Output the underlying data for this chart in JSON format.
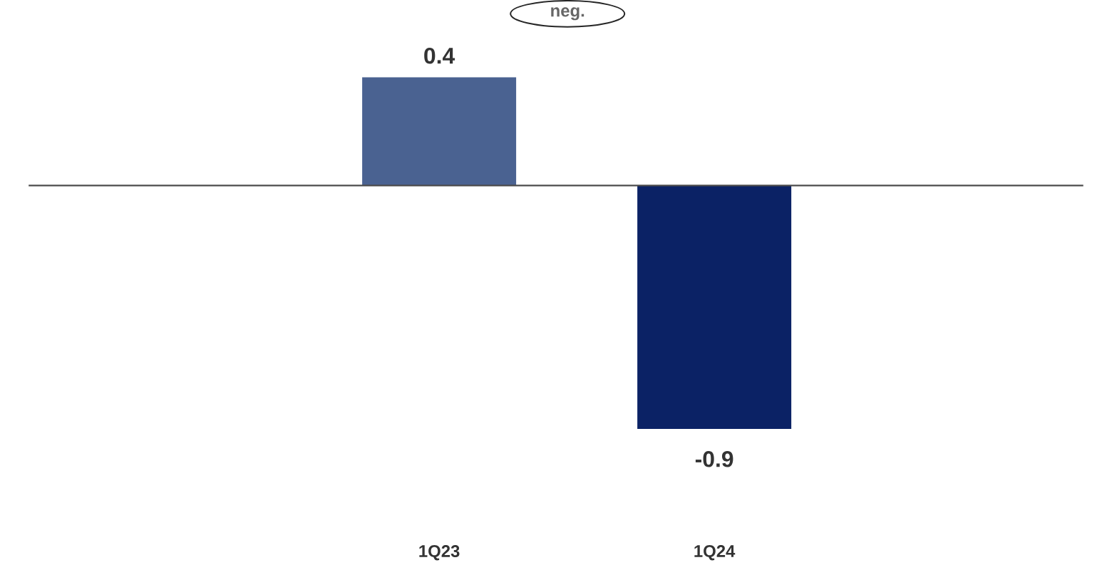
{
  "chart_data": {
    "type": "bar",
    "categories": [
      "1Q23",
      "1Q24"
    ],
    "values": [
      0.4,
      -0.9
    ],
    "colors": [
      "#4a6291",
      "#0b2265"
    ],
    "data_labels": true,
    "tick_labels": "x",
    "annotations": [
      "neg."
    ]
  }
}
